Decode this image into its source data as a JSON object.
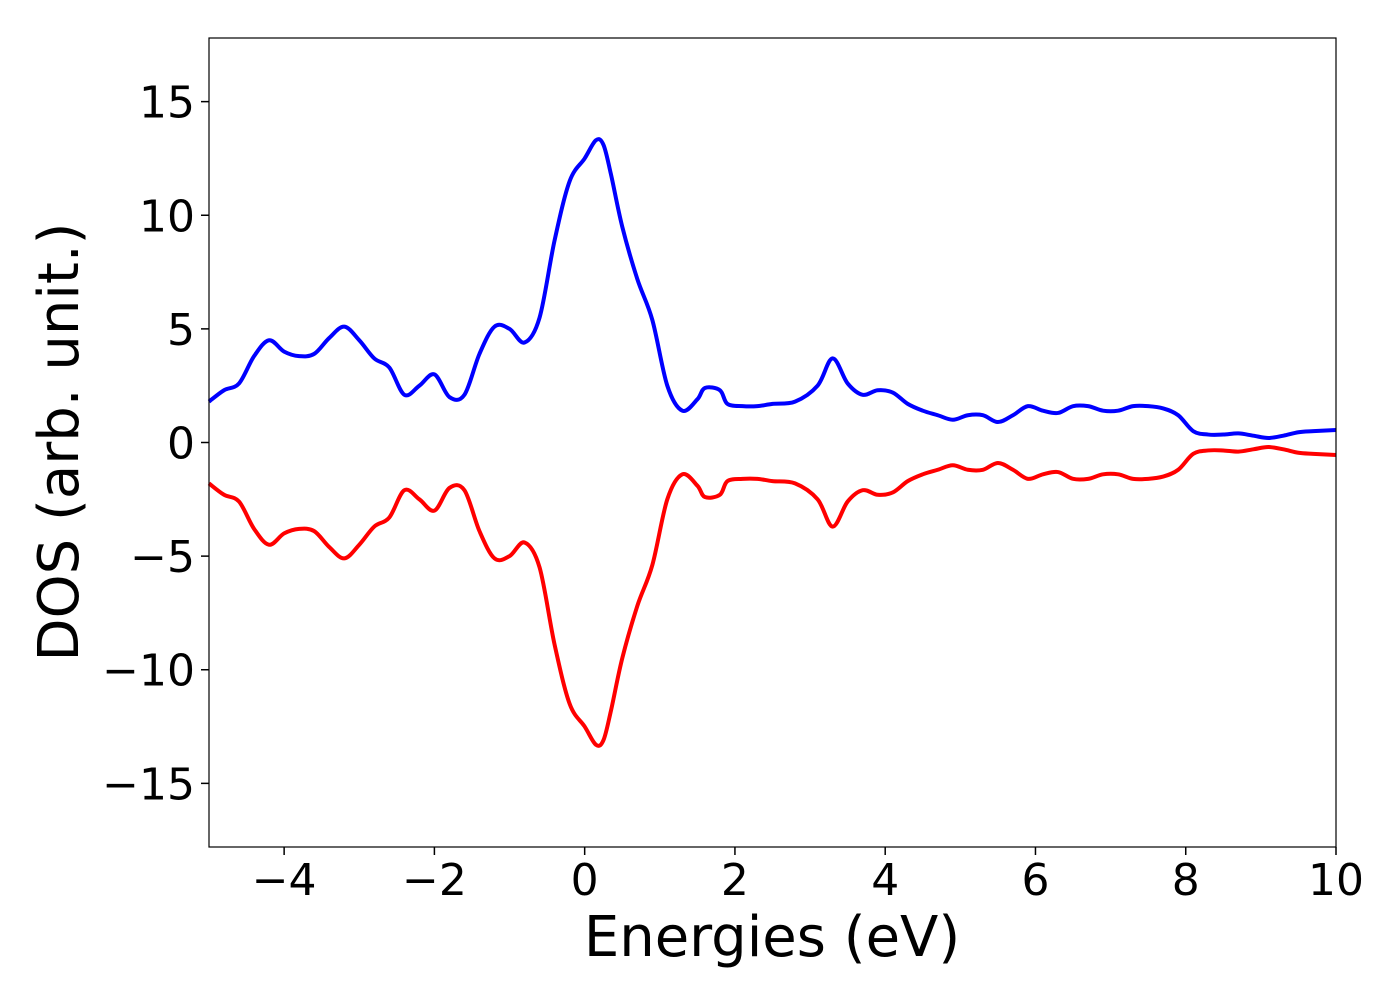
{
  "chart_data": {
    "type": "line",
    "title": "",
    "xlabel": "Energies (eV)",
    "ylabel": "DOS (arb. unit.)",
    "xlim": [
      -5,
      10
    ],
    "ylim": [
      -17.8,
      17.8
    ],
    "xticks": [
      -4,
      -2,
      0,
      2,
      4,
      6,
      8,
      10
    ],
    "xtick_labels": [
      "−4",
      "−2",
      "0",
      "2",
      "4",
      "6",
      "8",
      "10"
    ],
    "yticks": [
      -15,
      -10,
      -5,
      0,
      5,
      10,
      15
    ],
    "ytick_labels": [
      "−15",
      "−10",
      "−5",
      "0",
      "5",
      "10",
      "15"
    ],
    "grid": false,
    "legend": false,
    "series": [
      {
        "color": "#0000ff",
        "x": [
          -5.0,
          -4.8,
          -4.6,
          -4.4,
          -4.2,
          -4.0,
          -3.8,
          -3.6,
          -3.4,
          -3.2,
          -3.0,
          -2.8,
          -2.6,
          -2.4,
          -2.2,
          -2.0,
          -1.8,
          -1.6,
          -1.4,
          -1.2,
          -1.0,
          -0.8,
          -0.6,
          -0.4,
          -0.2,
          0.0,
          0.15,
          0.25,
          0.35,
          0.5,
          0.7,
          0.9,
          1.1,
          1.3,
          1.5,
          1.6,
          1.8,
          1.9,
          2.1,
          2.3,
          2.5,
          2.8,
          3.1,
          3.3,
          3.5,
          3.7,
          3.9,
          4.1,
          4.3,
          4.5,
          4.7,
          4.9,
          5.1,
          5.3,
          5.5,
          5.7,
          5.9,
          6.1,
          6.3,
          6.5,
          6.7,
          6.9,
          7.1,
          7.3,
          7.5,
          7.7,
          7.9,
          8.1,
          8.3,
          8.5,
          8.7,
          8.9,
          9.1,
          9.3,
          9.5,
          9.7,
          10.0
        ],
        "y": [
          1.8,
          2.3,
          2.6,
          3.8,
          4.5,
          4.0,
          3.8,
          3.9,
          4.6,
          5.1,
          4.5,
          3.7,
          3.3,
          2.1,
          2.5,
          3.0,
          2.0,
          2.1,
          3.9,
          5.1,
          5.0,
          4.4,
          5.5,
          8.9,
          11.5,
          12.5,
          13.3,
          13.1,
          11.8,
          9.5,
          7.2,
          5.4,
          2.5,
          1.4,
          1.9,
          2.4,
          2.3,
          1.7,
          1.6,
          1.6,
          1.7,
          1.8,
          2.5,
          3.7,
          2.6,
          2.1,
          2.3,
          2.2,
          1.7,
          1.4,
          1.2,
          1.0,
          1.2,
          1.2,
          0.9,
          1.2,
          1.6,
          1.4,
          1.3,
          1.6,
          1.6,
          1.4,
          1.4,
          1.6,
          1.6,
          1.5,
          1.2,
          0.5,
          0.35,
          0.35,
          0.4,
          0.3,
          0.2,
          0.3,
          0.45,
          0.5,
          0.55
        ]
      },
      {
        "color": "#ff0000",
        "x": [
          -5.0,
          -4.8,
          -4.6,
          -4.4,
          -4.2,
          -4.0,
          -3.8,
          -3.6,
          -3.4,
          -3.2,
          -3.0,
          -2.8,
          -2.6,
          -2.4,
          -2.2,
          -2.0,
          -1.8,
          -1.6,
          -1.4,
          -1.2,
          -1.0,
          -0.8,
          -0.6,
          -0.4,
          -0.2,
          0.0,
          0.15,
          0.25,
          0.35,
          0.5,
          0.7,
          0.9,
          1.1,
          1.3,
          1.5,
          1.6,
          1.8,
          1.9,
          2.1,
          2.3,
          2.5,
          2.8,
          3.1,
          3.3,
          3.5,
          3.7,
          3.9,
          4.1,
          4.3,
          4.5,
          4.7,
          4.9,
          5.1,
          5.3,
          5.5,
          5.7,
          5.9,
          6.1,
          6.3,
          6.5,
          6.7,
          6.9,
          7.1,
          7.3,
          7.5,
          7.7,
          7.9,
          8.1,
          8.3,
          8.5,
          8.7,
          8.9,
          9.1,
          9.3,
          9.5,
          9.7,
          10.0
        ],
        "y": [
          -1.8,
          -2.3,
          -2.6,
          -3.8,
          -4.5,
          -4.0,
          -3.8,
          -3.9,
          -4.6,
          -5.1,
          -4.5,
          -3.7,
          -3.3,
          -2.1,
          -2.5,
          -3.0,
          -2.0,
          -2.1,
          -3.9,
          -5.1,
          -5.0,
          -4.4,
          -5.5,
          -8.9,
          -11.5,
          -12.5,
          -13.3,
          -13.1,
          -11.8,
          -9.5,
          -7.2,
          -5.4,
          -2.5,
          -1.4,
          -1.9,
          -2.4,
          -2.3,
          -1.7,
          -1.6,
          -1.6,
          -1.7,
          -1.8,
          -2.5,
          -3.7,
          -2.6,
          -2.1,
          -2.3,
          -2.2,
          -1.7,
          -1.4,
          -1.2,
          -1.0,
          -1.2,
          -1.2,
          -0.9,
          -1.2,
          -1.6,
          -1.4,
          -1.3,
          -1.6,
          -1.6,
          -1.4,
          -1.4,
          -1.6,
          -1.6,
          -1.5,
          -1.2,
          -0.5,
          -0.35,
          -0.35,
          -0.4,
          -0.3,
          -0.2,
          -0.3,
          -0.45,
          -0.5,
          -0.55
        ]
      }
    ]
  }
}
